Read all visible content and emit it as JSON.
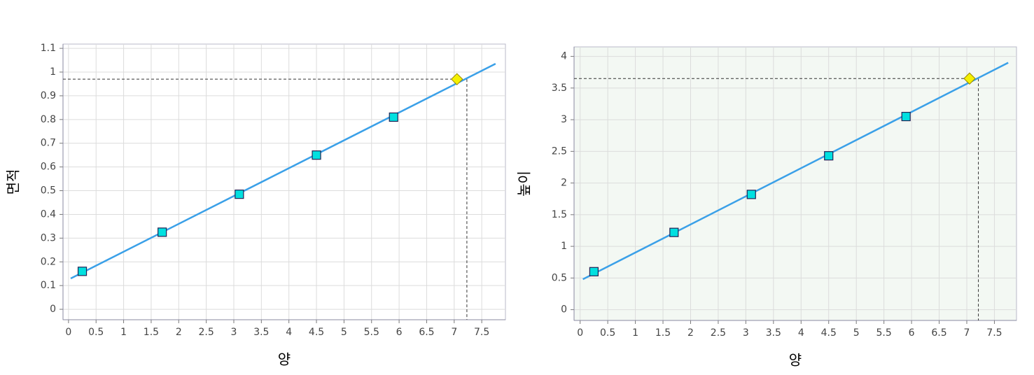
{
  "chart_data": [
    {
      "type": "scatter",
      "x_label": "양",
      "y_label": "면적",
      "x": [
        0.25,
        1.7,
        3.1,
        4.5,
        5.9
      ],
      "values": [
        0.16,
        0.325,
        0.485,
        0.65,
        0.81
      ],
      "color": "#00e0e0",
      "fit_line": {
        "x": [
          0.04,
          7.75
        ],
        "values": [
          0.13,
          1.035
        ],
        "color": "#3aa0e8"
      },
      "highlight": {
        "x": 7.05,
        "y": 0.97,
        "color": "#f4f000"
      },
      "reference": {
        "x": 7.23,
        "y": 0.97
      },
      "xlim": [
        -0.1,
        7.93
      ],
      "ylim": [
        -0.044,
        1.118
      ],
      "xticks": [
        0,
        0.5,
        1,
        1.5,
        2,
        2.5,
        3,
        3.5,
        4,
        4.5,
        5,
        5.5,
        6,
        6.5,
        7,
        7.5
      ],
      "yticks": [
        0,
        0.1,
        0.2,
        0.3,
        0.4,
        0.5,
        0.6,
        0.7,
        0.8,
        0.9,
        1,
        1.1
      ],
      "grid": true,
      "background": "#ffffff"
    },
    {
      "type": "scatter",
      "x_label": "양",
      "y_label": "높이",
      "x": [
        0.25,
        1.7,
        3.1,
        4.5,
        5.9
      ],
      "values": [
        0.6,
        1.22,
        1.82,
        2.43,
        3.05
      ],
      "color": "#00e0e0",
      "fit_line": {
        "x": [
          0.05,
          7.75
        ],
        "values": [
          0.48,
          3.9
        ],
        "color": "#3aa0e8"
      },
      "highlight": {
        "x": 7.05,
        "y": 3.65,
        "color": "#f4f000"
      },
      "reference": {
        "x": 7.21,
        "y": 3.65
      },
      "xlim": [
        -0.11,
        7.9
      ],
      "ylim": [
        -0.17,
        4.15
      ],
      "xticks": [
        0,
        0.5,
        1,
        1.5,
        2,
        2.5,
        3,
        3.5,
        4,
        4.5,
        5,
        5.5,
        6,
        6.5,
        7,
        7.5
      ],
      "yticks": [
        0,
        0.5,
        1,
        1.5,
        2,
        2.5,
        3,
        3.5,
        4
      ],
      "grid": true,
      "background": "#f3f8f3"
    }
  ]
}
